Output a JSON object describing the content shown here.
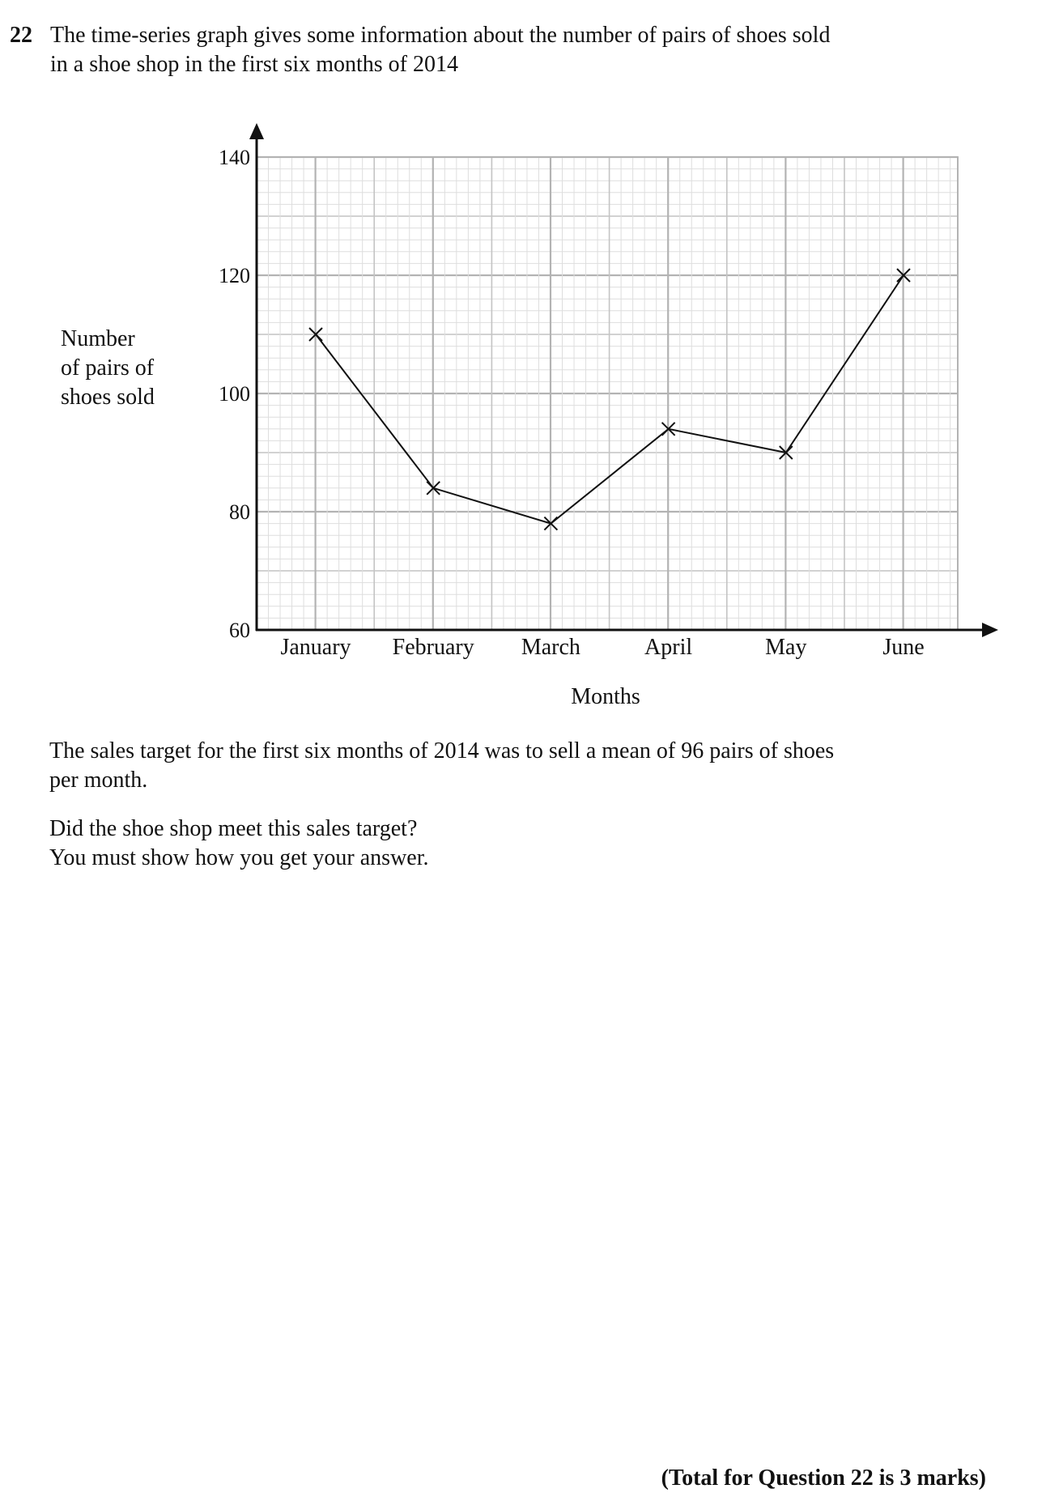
{
  "question": {
    "number": "22",
    "line1": "The time-series graph gives some information about the number of pairs of shoes sold",
    "line2": "in a shoe shop in the first six months of 2014"
  },
  "chart_data": {
    "type": "line",
    "title": "",
    "xlabel": "Months",
    "ylabel_lines": [
      "Number",
      "of pairs of",
      "shoes sold"
    ],
    "categories": [
      "January",
      "February",
      "March",
      "April",
      "May",
      "June"
    ],
    "series": [
      {
        "values": [
          110,
          84,
          78,
          94,
          90,
          120
        ]
      }
    ],
    "ylim": [
      60,
      140
    ],
    "yticks": [
      60,
      80,
      100,
      120,
      140
    ],
    "grid": true,
    "marker": "cross",
    "colors": {
      "line": "#111111",
      "grid_major": "#b3b3b3",
      "grid_minor": "#dedede",
      "axis": "#111111"
    }
  },
  "body": {
    "target_line1": "The sales target for the first six months of 2014 was to sell a mean of 96 pairs of shoes",
    "target_line2": "per month.",
    "prompt_line1": "Did the shoe shop meet this sales target?",
    "prompt_line2": "You must show how you get your answer."
  },
  "footer": {
    "total": "(Total for Question 22 is 3 marks)"
  }
}
